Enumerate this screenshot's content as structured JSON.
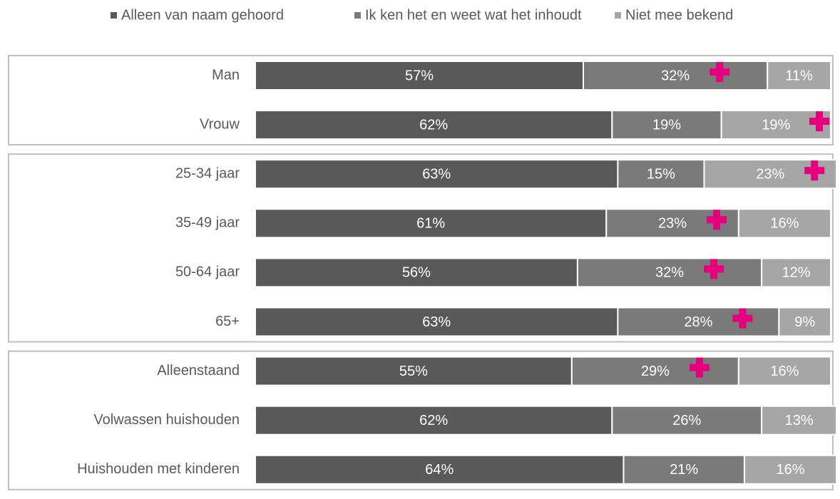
{
  "chart_data": {
    "type": "stacked_bar_horizontal",
    "categories": [
      "Man",
      "Vrouw",
      "25-34 jaar",
      "35-49 jaar",
      "50-64 jaar",
      "65+",
      "Alleenstaand",
      "Volwassen huishouden",
      "Huishouden met kinderen"
    ],
    "group_sizes": [
      2,
      4,
      3
    ],
    "xlim": [
      0,
      100
    ],
    "legend": "top-right",
    "series": [
      {
        "name": "Alleen van naam gehoord",
        "color": "#595959",
        "values": [
          57,
          62,
          63,
          61,
          56,
          63,
          55,
          62,
          64
        ],
        "value_labels": [
          "57%",
          "62%",
          "63%",
          "61%",
          "56%",
          "63%",
          "55%",
          "62%",
          "64%"
        ],
        "highlight": [
          false,
          false,
          false,
          false,
          false,
          false,
          false,
          false,
          false
        ]
      },
      {
        "name": "Ik ken het en weet wat het inhoudt",
        "color": "#7a7a7a",
        "values": [
          32,
          19,
          15,
          23,
          32,
          28,
          29,
          26,
          21
        ],
        "value_labels": [
          "32%",
          "19%",
          "15%",
          "23%",
          "32%",
          "28%",
          "29%",
          "26%",
          "21%"
        ],
        "highlight": [
          true,
          false,
          false,
          true,
          true,
          true,
          true,
          false,
          false
        ]
      },
      {
        "name": "Niet mee bekend",
        "color": "#a6a6a6",
        "values": [
          11,
          19,
          23,
          16,
          12,
          9,
          16,
          13,
          16
        ],
        "value_labels": [
          "11%",
          "19%",
          "23%",
          "16%",
          "12%",
          "9%",
          "16%",
          "13%",
          "16%"
        ],
        "highlight": [
          false,
          true,
          true,
          false,
          false,
          false,
          false,
          false,
          false
        ]
      }
    ],
    "highlight_color": "#e6007e"
  }
}
